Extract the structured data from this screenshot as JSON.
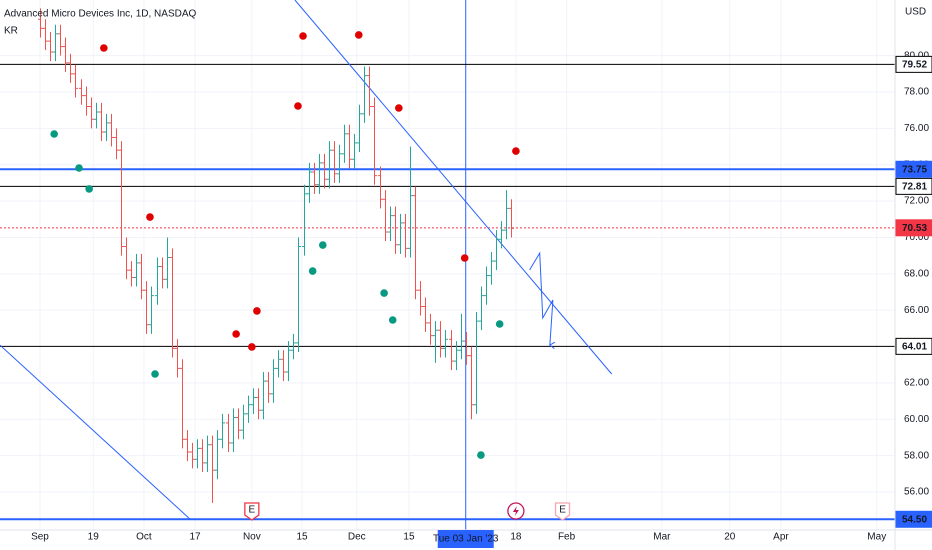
{
  "chart_data": {
    "type": "ohlc",
    "title": "Advanced Micro Devices Inc, 1D, NASDAQ",
    "subtitle": "KR",
    "currency": "USD",
    "up_color": "#26a69a",
    "down_color": "#ef5350",
    "grid": true,
    "xlim": [
      -7.89,
      168.7
    ],
    "ylim": [
      53.91,
      83.06
    ],
    "yticks": [
      {
        "value": 56,
        "label": "56.00"
      },
      {
        "value": 58,
        "label": "58.00"
      },
      {
        "value": 60,
        "label": "60.00"
      },
      {
        "value": 62,
        "label": "62.00"
      },
      {
        "value": 64,
        "label": "64.00"
      },
      {
        "value": 66,
        "label": "66.00"
      },
      {
        "value": 68,
        "label": "68.00"
      },
      {
        "value": 70,
        "label": "70.00"
      },
      {
        "value": 72,
        "label": "72.00"
      },
      {
        "value": 74,
        "label": "74.00"
      },
      {
        "value": 76,
        "label": "76.00"
      },
      {
        "value": 78,
        "label": "78.00"
      },
      {
        "value": 80,
        "label": "80.00"
      }
    ],
    "xticks": [
      {
        "value": 0,
        "label": "Sep"
      },
      {
        "value": 10.5,
        "label": "19"
      },
      {
        "value": 20.5,
        "label": "Oct"
      },
      {
        "value": 30.6,
        "label": "17"
      },
      {
        "value": 41.8,
        "label": "Nov"
      },
      {
        "value": 51.7,
        "label": "15"
      },
      {
        "value": 62.5,
        "label": "Dec"
      },
      {
        "value": 72.8,
        "label": "15"
      },
      {
        "value": 93.9,
        "label": "18"
      },
      {
        "value": 103.9,
        "label": "Feb"
      },
      {
        "value": 122.7,
        "label": "Mar"
      },
      {
        "value": 136.1,
        "label": "20"
      },
      {
        "value": 146.2,
        "label": "Apr"
      },
      {
        "value": 165.1,
        "label": "May"
      }
    ],
    "crosshair": {
      "x": 84,
      "label": "Tue 03 Jan '23",
      "color": "#2962ff"
    },
    "x": [
      0,
      1,
      2,
      3,
      4,
      5,
      6,
      7,
      8,
      9,
      10,
      11,
      12,
      13,
      14,
      15,
      16,
      17,
      18,
      19,
      20,
      21,
      22,
      23,
      24,
      25,
      26,
      27,
      28,
      29,
      30,
      31,
      32,
      33,
      34,
      35,
      36,
      37,
      38,
      39,
      40,
      41,
      42,
      43,
      44,
      45,
      46,
      47,
      48,
      49,
      50,
      51,
      52,
      53,
      54,
      55,
      56,
      57,
      58,
      59,
      60,
      61,
      62,
      63,
      64,
      65,
      66,
      67,
      68,
      69,
      70,
      71,
      72,
      73,
      74,
      75,
      76,
      77,
      78,
      79,
      80,
      81,
      82,
      83,
      84,
      85,
      86,
      87,
      88,
      89,
      90,
      91,
      92,
      93
    ],
    "ohlc": [
      [
        82.0,
        82.6,
        81.0,
        81.5
      ],
      [
        81.5,
        82.0,
        80.3,
        80.8
      ],
      [
        80.8,
        81.3,
        79.7,
        80.2
      ],
      [
        80.2,
        81.7,
        79.7,
        81.2
      ],
      [
        81.2,
        81.7,
        80.0,
        80.5
      ],
      [
        80.5,
        81.0,
        79.1,
        79.6
      ],
      [
        79.6,
        80.1,
        78.5,
        79.0
      ],
      [
        79.0,
        79.5,
        77.7,
        78.2
      ],
      [
        78.2,
        78.7,
        77.3,
        77.8
      ],
      [
        77.8,
        78.3,
        76.7,
        77.2
      ],
      [
        77.2,
        77.7,
        76.0,
        76.5
      ],
      [
        76.5,
        77.4,
        76.0,
        76.9
      ],
      [
        76.9,
        77.4,
        75.3,
        75.8
      ],
      [
        75.8,
        76.8,
        75.3,
        76.3
      ],
      [
        76.3,
        76.8,
        75.0,
        75.5
      ],
      [
        75.5,
        76.0,
        74.3,
        74.8
      ],
      [
        74.8,
        75.3,
        69.0,
        69.5
      ],
      [
        69.5,
        70.0,
        67.7,
        68.2
      ],
      [
        68.2,
        68.7,
        67.3,
        67.8
      ],
      [
        67.8,
        69.1,
        67.3,
        68.6
      ],
      [
        68.6,
        69.1,
        66.6,
        67.1
      ],
      [
        67.1,
        67.6,
        64.7,
        65.2
      ],
      [
        65.2,
        67.3,
        64.7,
        66.8
      ],
      [
        66.8,
        68.9,
        66.3,
        68.4
      ],
      [
        68.4,
        68.9,
        67.2,
        67.7
      ],
      [
        67.7,
        70.0,
        67.2,
        68.9
      ],
      [
        68.9,
        69.4,
        63.4,
        63.9
      ],
      [
        63.9,
        64.4,
        62.3,
        62.8
      ],
      [
        62.8,
        63.3,
        58.4,
        58.9
      ],
      [
        58.9,
        59.4,
        57.7,
        58.2
      ],
      [
        58.2,
        58.7,
        57.3,
        57.8
      ],
      [
        57.8,
        58.9,
        57.3,
        58.4
      ],
      [
        58.4,
        58.9,
        57.1,
        57.6
      ],
      [
        57.6,
        59.1,
        57.1,
        58.6
      ],
      [
        58.6,
        59.1,
        55.4,
        57.2
      ],
      [
        57.2,
        59.4,
        56.7,
        58.9
      ],
      [
        58.9,
        60.3,
        58.4,
        59.8
      ],
      [
        59.8,
        60.3,
        58.2,
        58.7
      ],
      [
        58.7,
        60.6,
        58.2,
        60.1
      ],
      [
        60.1,
        60.6,
        58.9,
        59.4
      ],
      [
        59.4,
        60.8,
        58.9,
        60.3
      ],
      [
        60.3,
        61.3,
        59.8,
        60.8
      ],
      [
        60.8,
        61.7,
        60.3,
        61.2
      ],
      [
        61.2,
        61.7,
        60.0,
        60.5
      ],
      [
        60.5,
        62.6,
        60.0,
        62.1
      ],
      [
        62.1,
        62.6,
        60.9,
        61.4
      ],
      [
        61.4,
        63.3,
        60.9,
        62.8
      ],
      [
        62.8,
        63.8,
        62.3,
        63.3
      ],
      [
        63.3,
        63.8,
        62.1,
        62.6
      ],
      [
        62.6,
        64.3,
        62.1,
        63.8
      ],
      [
        63.8,
        64.7,
        63.3,
        64.2
      ],
      [
        64.2,
        70.0,
        63.7,
        69.5
      ],
      [
        69.5,
        72.9,
        69.0,
        72.4
      ],
      [
        72.4,
        74.1,
        71.9,
        73.6
      ],
      [
        73.6,
        74.1,
        72.4,
        72.9
      ],
      [
        72.9,
        74.6,
        72.4,
        74.1
      ],
      [
        74.1,
        74.6,
        72.7,
        73.2
      ],
      [
        73.2,
        75.3,
        72.7,
        74.8
      ],
      [
        74.8,
        75.3,
        73.0,
        73.5
      ],
      [
        73.5,
        75.1,
        73.0,
        74.6
      ],
      [
        74.6,
        76.2,
        74.1,
        75.7
      ],
      [
        75.7,
        76.2,
        73.8,
        74.3
      ],
      [
        74.3,
        75.7,
        73.8,
        75.2
      ],
      [
        75.2,
        77.3,
        74.7,
        76.8
      ],
      [
        76.8,
        79.4,
        76.3,
        78.9
      ],
      [
        78.9,
        79.4,
        76.7,
        77.2
      ],
      [
        77.2,
        77.7,
        72.9,
        73.4
      ],
      [
        73.4,
        73.9,
        71.6,
        72.1
      ],
      [
        72.1,
        72.6,
        69.8,
        70.3
      ],
      [
        70.3,
        71.7,
        69.8,
        71.2
      ],
      [
        71.2,
        71.7,
        69.1,
        69.6
      ],
      [
        69.6,
        71.3,
        69.1,
        70.8
      ],
      [
        70.8,
        71.3,
        68.9,
        69.4
      ],
      [
        69.4,
        75.0,
        68.9,
        72.3
      ],
      [
        72.3,
        72.8,
        66.6,
        67.1
      ],
      [
        67.1,
        67.6,
        65.7,
        66.2
      ],
      [
        66.2,
        66.7,
        64.8,
        65.3
      ],
      [
        65.3,
        65.8,
        64.1,
        64.6
      ],
      [
        64.6,
        65.4,
        63.1,
        64.9
      ],
      [
        64.9,
        65.4,
        63.4,
        63.9
      ],
      [
        63.9,
        64.9,
        63.4,
        64.4
      ],
      [
        64.4,
        64.9,
        62.7,
        63.2
      ],
      [
        63.2,
        64.3,
        62.7,
        63.8
      ],
      [
        63.8,
        65.8,
        63.3,
        64.3
      ],
      [
        64.3,
        64.8,
        63.0,
        63.5
      ],
      [
        63.5,
        64.0,
        60.0,
        60.8
      ],
      [
        60.8,
        65.9,
        60.3,
        65.4
      ],
      [
        65.4,
        67.3,
        64.9,
        66.8
      ],
      [
        66.8,
        68.4,
        66.3,
        67.9
      ],
      [
        67.9,
        69.2,
        67.4,
        68.7
      ],
      [
        68.7,
        70.4,
        68.2,
        69.9
      ],
      [
        69.9,
        70.9,
        69.4,
        70.4
      ],
      [
        70.4,
        72.6,
        69.9,
        71.6
      ],
      [
        71.6,
        72.1,
        70.0,
        70.5
      ]
    ],
    "marker_groups": [
      {
        "color": "#e00000",
        "x": [
          12.6,
          21.7,
          38.7,
          42.8,
          41.8,
          50.9,
          51.9,
          62.9,
          70.8,
          83.8,
          93.9
        ],
        "values": [
          80.42,
          71.12,
          64.69,
          65.96,
          63.98,
          77.23,
          81.08,
          81.14,
          77.12,
          68.87,
          74.75
        ]
      },
      {
        "color": "#089981",
        "x": [
          2.8,
          7.7,
          9.7,
          22.7,
          53.8,
          55.8,
          67.9,
          69.6,
          87.0,
          90.7
        ],
        "values": [
          75.69,
          73.82,
          72.67,
          62.49,
          68.15,
          69.58,
          66.94,
          65.46,
          58.03,
          65.24
        ]
      }
    ],
    "levels": [
      {
        "value": 79.52,
        "color": "#000000"
      },
      {
        "value": 73.75,
        "color": "#2962ff",
        "width": 2
      },
      {
        "value": 72.81,
        "color": "#000000"
      },
      {
        "value": 70.53,
        "color": "#f23645",
        "style": "dotted"
      },
      {
        "value": 64.01,
        "color": "#000000"
      },
      {
        "value": 54.5,
        "label": "54.50",
        "color": "#2962ff",
        "width": 2
      }
    ],
    "trendlines": [
      {
        "color": "#2962ff",
        "x": [
          50.3,
          112.8
        ],
        "values": [
          83.06,
          62.49
        ]
      },
      {
        "color": "#2962ff",
        "x": [
          -7.89,
          29.6
        ],
        "values": [
          64.08,
          54.51
        ]
      }
    ],
    "projection": {
      "color": "#2962ff",
      "x": [
        96.6,
        98.6,
        99.2,
        101.2,
        100.6
      ],
      "values": [
        68.21,
        69.14,
        65.57,
        66.56,
        64.08
      ]
    },
    "events": [
      {
        "x": 41.8,
        "label": "E",
        "color": "#f23645"
      },
      {
        "x": 93.9,
        "color": "#c2185b"
      },
      {
        "x": 103.1,
        "label": "E",
        "color": "#f7a5b0"
      }
    ]
  }
}
